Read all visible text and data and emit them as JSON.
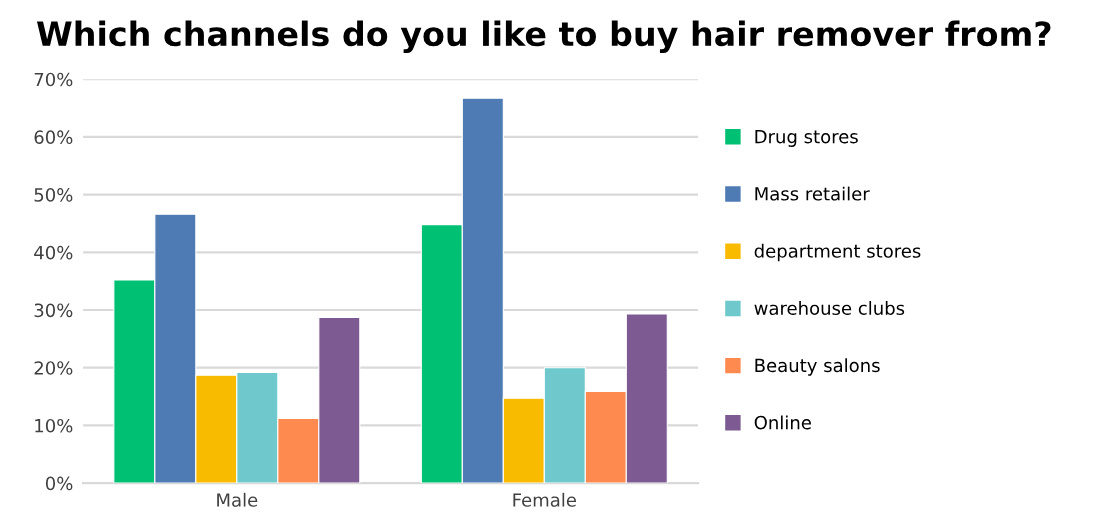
{
  "chart_data": {
    "type": "bar",
    "title": "Which channels do you like to buy hair remover from?",
    "categories": [
      "Male",
      "Female"
    ],
    "series": [
      {
        "name": "Drug stores",
        "color": "#00c073",
        "values": [
          35.2,
          44.8
        ]
      },
      {
        "name": "Mass retailer",
        "color": "#4f7bb5",
        "values": [
          46.6,
          66.7
        ]
      },
      {
        "name": "department stores",
        "color": "#f8bb00",
        "values": [
          18.7,
          14.7
        ]
      },
      {
        "name": "warehouse clubs",
        "color": "#6ec8cc",
        "values": [
          19.2,
          20.0
        ]
      },
      {
        "name": "Beauty salons",
        "color": "#ff8a50",
        "values": [
          11.2,
          15.9
        ]
      },
      {
        "name": "Online",
        "color": "#7d5b92",
        "values": [
          28.7,
          29.3
        ]
      }
    ],
    "ylim": [
      0,
      70
    ],
    "yticks": [
      {
        "value": 0,
        "label": "0%"
      },
      {
        "value": 10,
        "label": "10%"
      },
      {
        "value": 20,
        "label": "20%"
      },
      {
        "value": 30,
        "label": "30%"
      },
      {
        "value": 40,
        "label": "40%"
      },
      {
        "value": 50,
        "label": "50%"
      },
      {
        "value": 60,
        "label": "60%"
      },
      {
        "value": 70,
        "label": "70%"
      }
    ],
    "grid": "y",
    "legend": "right"
  }
}
